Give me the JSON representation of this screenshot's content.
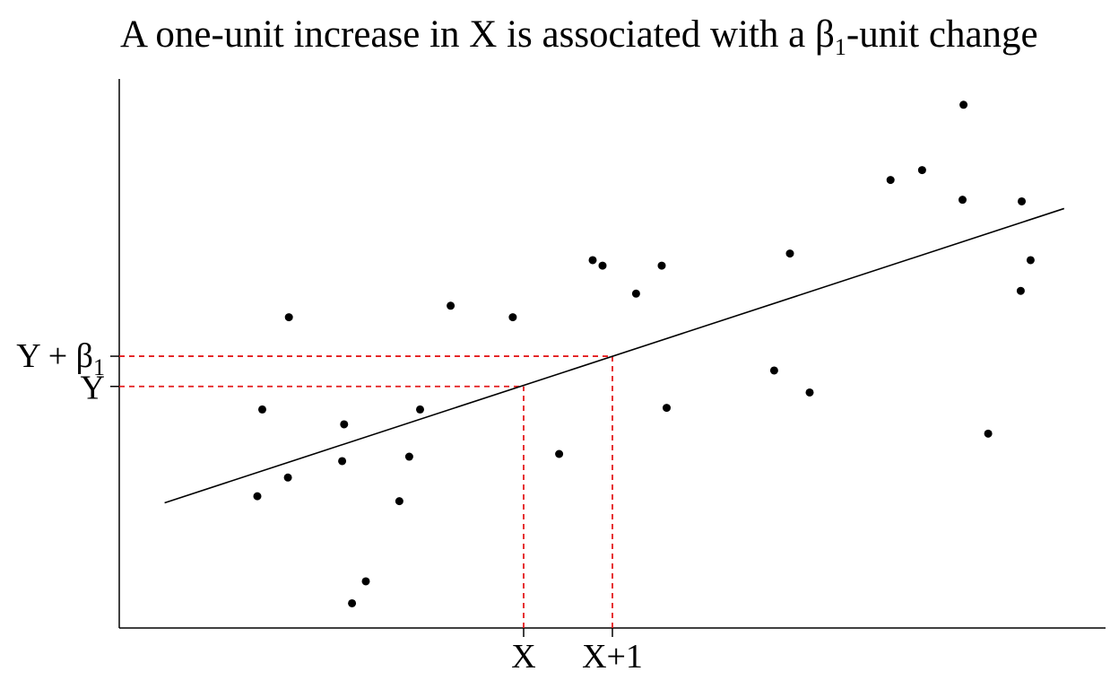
{
  "chart_data": {
    "type": "scatter",
    "title_prefix": "A one-unit increase in X is associated with a ",
    "title_symbol": "β",
    "title_subscript": "1",
    "title_suffix": "-unit change",
    "xlabel": "",
    "ylabel": "",
    "xlim": [
      0,
      100
    ],
    "ylim": [
      0,
      100
    ],
    "grid": false,
    "points": [
      {
        "x": 14.0,
        "y": 24.0
      },
      {
        "x": 14.5,
        "y": 39.8
      },
      {
        "x": 17.1,
        "y": 27.4
      },
      {
        "x": 17.2,
        "y": 56.6
      },
      {
        "x": 22.6,
        "y": 30.4
      },
      {
        "x": 22.8,
        "y": 37.1
      },
      {
        "x": 23.6,
        "y": 4.5
      },
      {
        "x": 25.0,
        "y": 8.5
      },
      {
        "x": 28.4,
        "y": 23.1
      },
      {
        "x": 29.4,
        "y": 31.2
      },
      {
        "x": 30.5,
        "y": 39.8
      },
      {
        "x": 33.6,
        "y": 58.7
      },
      {
        "x": 39.9,
        "y": 56.6
      },
      {
        "x": 44.6,
        "y": 31.7
      },
      {
        "x": 48.0,
        "y": 67.0
      },
      {
        "x": 49.0,
        "y": 66.0
      },
      {
        "x": 52.4,
        "y": 60.9
      },
      {
        "x": 55.0,
        "y": 66.0
      },
      {
        "x": 55.5,
        "y": 40.1
      },
      {
        "x": 66.4,
        "y": 46.9
      },
      {
        "x": 68.0,
        "y": 68.2
      },
      {
        "x": 70.0,
        "y": 42.9
      },
      {
        "x": 78.2,
        "y": 81.6
      },
      {
        "x": 81.4,
        "y": 83.4
      },
      {
        "x": 85.5,
        "y": 78.0
      },
      {
        "x": 85.6,
        "y": 95.3
      },
      {
        "x": 88.1,
        "y": 35.4
      },
      {
        "x": 91.5,
        "y": 77.7
      },
      {
        "x": 91.4,
        "y": 61.4
      },
      {
        "x": 92.4,
        "y": 67.0
      }
    ],
    "fit_line": {
      "x": [
        4.6,
        95.8
      ],
      "y": [
        22.8,
        76.4
      ]
    },
    "annotation": {
      "x0": 41.0,
      "x1": 50.0,
      "y0": 44.0,
      "y1": 49.5,
      "x0_label": "X",
      "x1_label": "X+1",
      "y0_label": "Y",
      "y1_label_prefix": "Y + ",
      "y1_label_symbol": "β",
      "y1_label_subscript": "1",
      "color": "#e41a1c"
    },
    "colors": {
      "points": "#000000",
      "line": "#000000",
      "guides": "#e41a1c"
    }
  }
}
